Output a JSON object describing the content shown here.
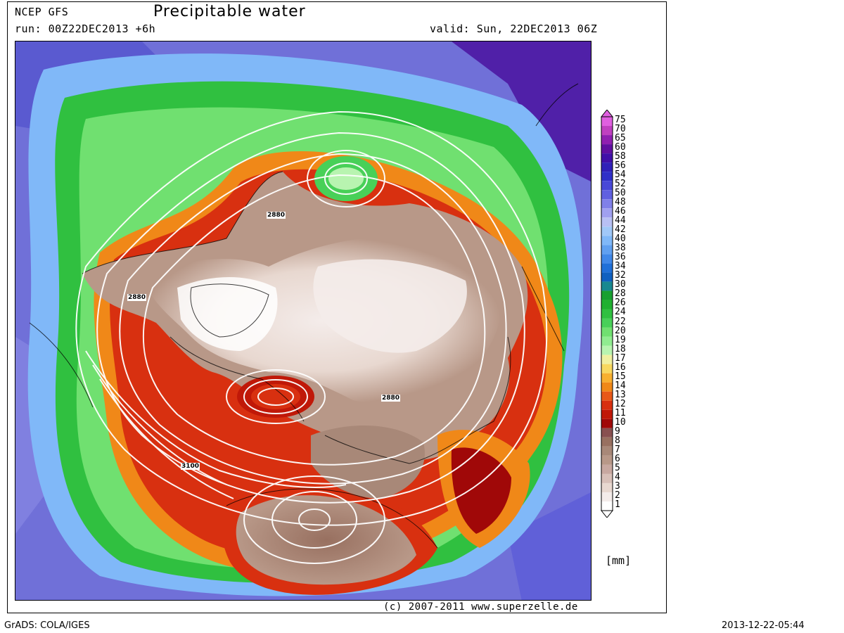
{
  "header": {
    "model": "NCEP GFS",
    "title": "Precipitable water",
    "run": "run: 00Z22DEC2013 +6h",
    "valid": "valid: Sun, 22DEC2013 06Z"
  },
  "colorbar": {
    "unit": "[mm]",
    "levels": [
      "75",
      "70",
      "65",
      "60",
      "58",
      "56",
      "54",
      "52",
      "50",
      "48",
      "46",
      "44",
      "42",
      "40",
      "38",
      "36",
      "34",
      "32",
      "30",
      "28",
      "26",
      "24",
      "22",
      "20",
      "19",
      "18",
      "17",
      "16",
      "15",
      "14",
      "13",
      "12",
      "11",
      "10",
      "9",
      "8",
      "7",
      "6",
      "5",
      "4",
      "3",
      "2",
      "1"
    ],
    "colors": [
      "#e060e0",
      "#c040c0",
      "#9020b0",
      "#6010a0",
      "#4010a8",
      "#3020b8",
      "#3030c8",
      "#4848d8",
      "#6060e0",
      "#8080e8",
      "#a0a0f0",
      "#b8c0f4",
      "#a0c8f8",
      "#80b8f8",
      "#60a0f0",
      "#4088e8",
      "#2070d8",
      "#1060c0",
      "#188890",
      "#18a030",
      "#20b030",
      "#30c040",
      "#48d058",
      "#70e070",
      "#90ec90",
      "#b8f4b0",
      "#f0f0a0",
      "#f8d860",
      "#f8b030",
      "#f08818",
      "#e85818",
      "#d83010",
      "#c01808",
      "#a00808",
      "#885050",
      "#987060",
      "#a88878",
      "#b89888",
      "#c8a8a0",
      "#d8c0b8",
      "#e8d8d0",
      "#f4ecea",
      "#ffffff"
    ]
  },
  "map": {
    "contour_labels": [
      "2880",
      "2880",
      "2880",
      "3100"
    ]
  },
  "copyright": "(c) 2007-2011 www.superzelle.de",
  "footer": {
    "left": "GrADS: COLA/IGES",
    "right": "2013-12-22-05:44"
  }
}
